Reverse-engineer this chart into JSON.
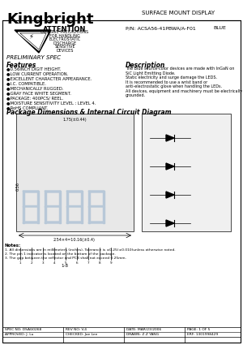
{
  "title_company": "Kingbright",
  "title_right": "SURFACE MOUNT DISPLAY",
  "pn": "P/N: ACSA56-41PBWA/A-F01",
  "color_label": "BLUE",
  "preliminary": "PRELIMINARY SPEC",
  "attention_title": "ATTENTION",
  "attention_lines": [
    "OBSERVE PRECAUTIONS",
    "FOR HANDLING",
    "ELECTROSTATIC",
    "DISCHARGE",
    "SENSITIVE",
    "DEVICES"
  ],
  "features_title": "Features",
  "features": [
    "●0.56INCH DIGIT HEIGHT.",
    "●LOW CURRENT OPERATION.",
    "●EXCELLENT CHARACTER APPEARANCE.",
    "●I.C. COMPATIBLE.",
    "●MECHANICALLY RUGGED.",
    "●GRAY FACE WHITE SEGMENT.",
    "●PACKAGE: 400PCS/ REEL.",
    "●MOISTURE SENSITIVITY LEVEL : LEVEL 4.",
    "●RoHS COMPLIANT."
  ],
  "description_title": "Description",
  "description_lines": [
    "The Blue source-color devices are made with InGaN on",
    "SiC Light Emitting Diode.",
    "Static electricity and surge damage the LEDS.",
    "It is recommended to use a wrist band or",
    "anti-electrostatic glove when handling the LEDs.",
    "All devices, equipment and machinery must be electrically",
    "grounded."
  ],
  "package_title": "Package Dimensions & Internal Circuit Diagram",
  "footer_spec": "SPEC NO: DSAG0268",
  "footer_rev": "REV NO: V.4",
  "footer_date": "DATE: MAR/23/2006",
  "footer_page": "PAGE: 1 OF 5",
  "footer_approved": "APPROVED: J. Lu",
  "footer_checked": "CHECKED: Joe Lee",
  "footer_drawn": "DRAWN: Z.Z YANG",
  "footer_erf": "ERF: 1301998429",
  "bg_color": "#ffffff",
  "border_color": "#000000"
}
